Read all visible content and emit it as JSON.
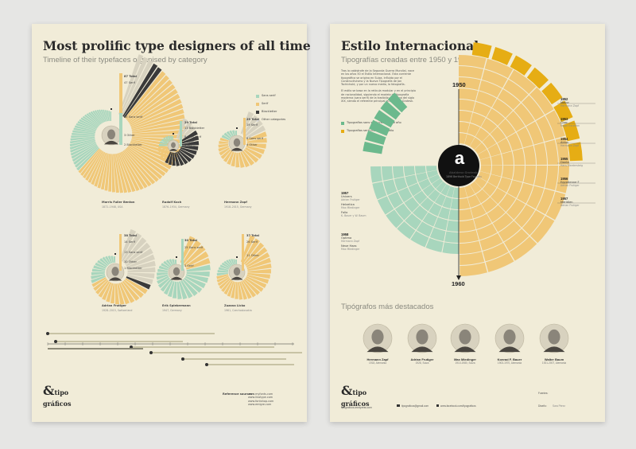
{
  "left": {
    "title": "Most prolific type designers of all time",
    "subtitle": "Timeline of their typefaces organised by category",
    "legend": [
      "Sans serif",
      "Serif",
      "Blackletter",
      "Other categories"
    ],
    "big": {
      "total": "87 Total",
      "serif": "47 Serif",
      "sans": "35 Sans serif",
      "other": "3 Other",
      "black": "2 Blackletter",
      "name": "Morris Fuller Benton",
      "info": "1872–1948, USA"
    },
    "mid1": {
      "total": "29 Total",
      "black": "13 Blackletter",
      "sans": "8 Sans serif",
      "serif": "5 Serif",
      "other": "3 Other",
      "name": "Rudolf Koch",
      "info": "1876–1934, Germany"
    },
    "mid2": {
      "total": "29 Total",
      "serif": "19 Serif",
      "sans": "6 Sans serif",
      "other": "4 Other",
      "name": "Hermann Zapf",
      "info": "1918–2015, Germany"
    },
    "low1": {
      "total": "38 Total",
      "serif": "14 Serif",
      "sans": "13 Sans serif",
      "other": "10 Other",
      "black": "1 Blackletter",
      "name": "Adrian Frutiger",
      "info": "1928–2015, Switzerland"
    },
    "low2": {
      "total": "30 Total",
      "sans": "25 Sans serif",
      "serif": "5 Serif",
      "name": "Erik Spiekermann",
      "info": "1947, Germany"
    },
    "low3": {
      "total": "37 Total",
      "serif": "26 Serif",
      "sans": "11 Other",
      "name": "Zuzana Licko",
      "info": "1961, Czechoslovakia"
    },
    "footer": {
      "label": "Reference sources:",
      "sources": [
        "www.myfonts.com",
        "www.linotype.com",
        "www.fontshop.com",
        "www.emigre.com"
      ]
    }
  },
  "right": {
    "title": "Estilo Internacional",
    "subtitle": "Tipografías creadas entre 1950 y 1960",
    "legend": [
      "Tipografías sans serif creadas ese año",
      "Tipografías serif creadas ese año"
    ],
    "year_top": "1950",
    "year_bottom": "1960",
    "center_letter": "a",
    "center_caption": "Akzidenz Grotesk",
    "center_sub": "1896 Berthold Type Foundry",
    "right_years": [
      {
        "year": "1952",
        "fonts": [
          {
            "name": "Melior",
            "author": "Hermann Zapf"
          }
        ]
      },
      {
        "year": "1953",
        "fonts": [
          {
            "name": "Choc",
            "author": "Roger Excoffon"
          }
        ]
      },
      {
        "year": "1954",
        "fonts": [
          {
            "name": "Aldus",
            "author": "Hermann Zapf"
          }
        ]
      },
      {
        "year": "1955",
        "fonts": [
          {
            "name": "Dante",
            "author": "Hans Mardersteig"
          }
        ]
      },
      {
        "year": "1956",
        "fonts": [
          {
            "name": "Egyptienne F",
            "author": "Adrian Frutiger"
          }
        ]
      },
      {
        "year": "1957",
        "fonts": [
          {
            "name": "Meridien",
            "author": "Adrian Frutiger"
          }
        ]
      }
    ],
    "left_years": [
      {
        "year": "1957",
        "fonts": [
          {
            "name": "Univers",
            "author": "Adrian Frutiger"
          },
          {
            "name": "Helvetica",
            "author": "Max Miedinger"
          },
          {
            "name": "Folio",
            "author": "K. Bauer y W. Baum"
          }
        ]
      },
      {
        "year": "1958",
        "fonts": [
          {
            "name": "Optima",
            "author": "Hermann Zapf"
          },
          {
            "name": "Neue Haas",
            "author": "Max Miedinger"
          }
        ]
      }
    ],
    "featured_title": "Tipógrafos más destacados",
    "designers": [
      {
        "name": "Hermann Zapf",
        "info": "1918, Alemania"
      },
      {
        "name": "Adrian Frutiger",
        "info": "1928, Suiza"
      },
      {
        "name": "Max Miedinger",
        "info": "1910-1980, Suiza"
      },
      {
        "name": "Konrad F. Bauer",
        "info": "1903-1970, Alemania"
      },
      {
        "name": "Walter Baum",
        "info": "1921-2007, Alemania"
      }
    ],
    "footer": {
      "site": "tipograficos.wordpress.com",
      "email": "tipograficos@gmail.com",
      "facebook": "www.facebook.com/tipograficos",
      "label1": "Fuentes:",
      "label2": "Diseño:",
      "name": "Sara Pérez"
    }
  },
  "logo": {
    "amp": "&",
    "line1": "tipo",
    "line2": "gráficos"
  },
  "colors": {
    "paper": "#f1ecd8",
    "serif": "#f0c777",
    "sans": "#a8d6bd",
    "sans_dark": "#6cb98d",
    "black": "#3a3a3a",
    "gold": "#e6ad14"
  }
}
